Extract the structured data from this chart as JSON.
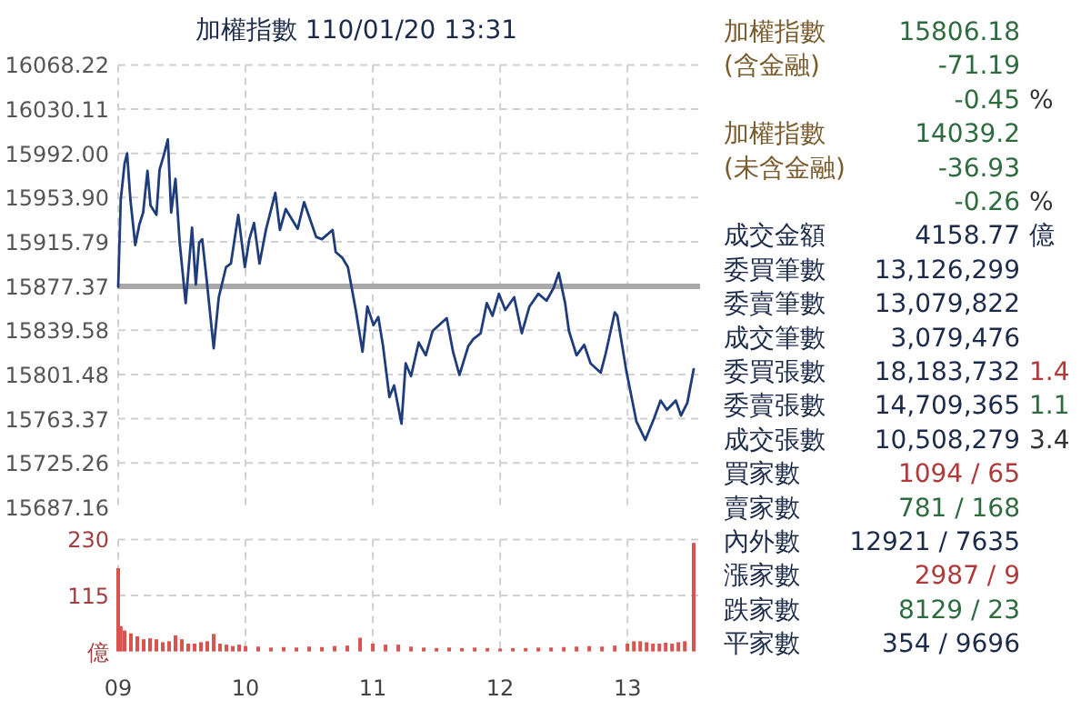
{
  "chart_data": [
    {
      "type": "line",
      "title": "加權指數 110/01/20 13:31",
      "xlim": [
        9,
        13.57
      ],
      "ylim": [
        15687.16,
        16068.22
      ],
      "yticks": [
        {
          "value": 15687.16,
          "label": "15687.16"
        },
        {
          "value": 15725.26,
          "label": "15725.26"
        },
        {
          "value": 15763.37,
          "label": "15763.37"
        },
        {
          "value": 15801.48,
          "label": "15801.48"
        },
        {
          "value": 15839.58,
          "label": "15839.58"
        },
        {
          "value": 15877.37,
          "label": "15877.37"
        },
        {
          "value": 15915.79,
          "label": "15915.79"
        },
        {
          "value": 15953.9,
          "label": "15953.90"
        },
        {
          "value": 15992,
          "label": "15992.00"
        },
        {
          "value": 16030.11,
          "label": "16030.11"
        },
        {
          "value": 16068.22,
          "label": "16068.22"
        }
      ],
      "xticks": [
        9,
        10,
        11,
        12,
        13
      ],
      "tick_labels": "y",
      "grid": true,
      "line_style": "solid",
      "ref_lines": [
        {
          "axis": "y",
          "value": 15877.37,
          "color": "#a9a9a9"
        }
      ],
      "series": [
        {
          "color": "#1f3d7a",
          "x": [
            9.0,
            9.02,
            9.05,
            9.07,
            9.096,
            9.134,
            9.167,
            9.196,
            9.23,
            9.254,
            9.3,
            9.325,
            9.36,
            9.39,
            9.416,
            9.45,
            9.483,
            9.53,
            9.58,
            9.61,
            9.636,
            9.66,
            9.694,
            9.75,
            9.79,
            9.847,
            9.885,
            9.943,
            9.995,
            10.03,
            10.067,
            10.11,
            10.16,
            10.234,
            10.27,
            10.316,
            10.41,
            10.46,
            10.555,
            10.6,
            10.684,
            10.708,
            10.76,
            10.804,
            10.866,
            10.919,
            10.957,
            11.005,
            11.043,
            11.08,
            11.13,
            11.167,
            11.225,
            11.258,
            11.3,
            11.36,
            11.416,
            11.47,
            11.58,
            11.63,
            11.68,
            11.75,
            11.79,
            11.847,
            11.895,
            11.94,
            11.99,
            12.04,
            12.11,
            12.17,
            12.23,
            12.3,
            12.364,
            12.42,
            12.46,
            12.51,
            12.54,
            12.6,
            12.66,
            12.71,
            12.79,
            12.83,
            12.9,
            12.92,
            12.99,
            13.07,
            13.14,
            13.21,
            13.26,
            13.31,
            13.38,
            13.42,
            13.47,
            13.52
          ],
          "values": [
            15877,
            15952,
            15983,
            15992,
            15952,
            15913,
            15931,
            15941,
            15977,
            15947,
            15939,
            15978,
            15991,
            16004,
            15941,
            15970,
            15915,
            15863,
            15928,
            15879,
            15915,
            15918,
            15884,
            15824,
            15868,
            15894,
            15897,
            15939,
            15894,
            15918,
            15932,
            15897,
            15926,
            15958,
            15926,
            15944,
            15927,
            15950,
            15920,
            15918,
            15926,
            15907,
            15902,
            15894,
            15857,
            15821,
            15860,
            15844,
            15851,
            15826,
            15782,
            15792,
            15759,
            15811,
            15800,
            15829,
            15818,
            15839,
            15850,
            15821,
            15801,
            15826,
            15832,
            15837,
            15863,
            15852,
            15871,
            15857,
            15868,
            15837,
            15860,
            15871,
            15865,
            15876,
            15889,
            15863,
            15839,
            15818,
            15827,
            15811,
            15803,
            15820,
            15855,
            15852,
            15805,
            15761,
            15745,
            15764,
            15779,
            15771,
            15779,
            15766,
            15777,
            15806
          ]
        }
      ]
    },
    {
      "type": "bar",
      "xlim": [
        9,
        13.57
      ],
      "ylim": [
        0,
        230
      ],
      "yticks": [
        {
          "value": 0,
          "label": "億"
        },
        115,
        230
      ],
      "xticks": [
        {
          "value": 9,
          "label": "09"
        },
        {
          "value": 10,
          "label": "10"
        },
        {
          "value": 11,
          "label": "11"
        },
        {
          "value": 12,
          "label": "12"
        },
        {
          "value": 13,
          "label": "13"
        }
      ],
      "grid": true,
      "series": [
        {
          "color": "#d9534f",
          "x": [
            9.0,
            9.02,
            9.05,
            9.1,
            9.15,
            9.2,
            9.25,
            9.3,
            9.35,
            9.4,
            9.45,
            9.5,
            9.55,
            9.6,
            9.65,
            9.7,
            9.75,
            9.8,
            9.85,
            9.9,
            9.95,
            10.0,
            10.1,
            10.2,
            10.3,
            10.4,
            10.5,
            10.6,
            10.7,
            10.8,
            10.9,
            11.0,
            11.1,
            11.2,
            11.3,
            11.4,
            11.5,
            11.6,
            11.7,
            11.8,
            11.9,
            12.0,
            12.1,
            12.2,
            12.3,
            12.4,
            12.5,
            12.6,
            12.7,
            12.8,
            12.9,
            13.0,
            13.05,
            13.1,
            13.15,
            13.2,
            13.25,
            13.3,
            13.35,
            13.4,
            13.45,
            13.52
          ],
          "values": [
            171,
            52,
            43,
            37,
            31,
            25,
            27,
            25,
            19,
            21,
            33,
            25,
            16,
            16,
            19,
            21,
            36,
            16,
            14,
            11,
            14,
            11,
            10,
            8,
            9,
            8,
            10,
            9,
            11,
            12,
            28,
            16,
            14,
            14,
            10,
            8,
            7,
            8,
            7,
            8,
            7,
            6,
            7,
            7,
            8,
            8,
            9,
            10,
            11,
            10,
            12,
            16,
            21,
            21,
            19,
            16,
            16,
            18,
            16,
            19,
            21,
            223
          ]
        }
      ]
    },
    {
      "type": "other",
      "categories": [
        "加權指數",
        "(含金融)",
        null,
        "加權指數",
        "(未含金融)",
        null,
        "成交金額",
        "委買筆數",
        "委賣筆數",
        "成交筆數",
        "委買張數",
        "委賣張數",
        "成交張數",
        "買家數",
        "賣家數",
        "內外數",
        "漲家數",
        "跌家數",
        "平家數"
      ],
      "value_labels": [
        [
          "15806.18",
          null
        ],
        [
          "-71.19",
          null
        ],
        [
          "-0.45",
          "%"
        ],
        [
          "14039.2",
          null
        ],
        [
          "-36.93",
          null
        ],
        [
          "-0.26",
          "%"
        ],
        [
          "4158.77",
          "億"
        ],
        [
          "13,126,299",
          null
        ],
        [
          "13,079,822",
          null
        ],
        [
          "3,079,476",
          null
        ],
        [
          "18,183,732",
          "1.4"
        ],
        [
          "14,709,365",
          "1.1"
        ],
        [
          "10,508,279",
          "3.4"
        ],
        [
          "1094 / 65",
          null
        ],
        [
          "781 / 168",
          null
        ],
        [
          "12921 / 7635",
          null
        ],
        [
          "2987 / 9",
          null
        ],
        [
          "8129 / 23",
          null
        ],
        [
          "354 / 9696",
          null
        ]
      ],
      "colors": [
        [
          "#7a5c2e",
          "#2e6b3f",
          null
        ],
        [
          "#7a5c2e",
          "#2e6b3f",
          null
        ],
        [
          null,
          "#2e6b3f",
          "#333333"
        ],
        [
          "#7a5c2e",
          "#2e6b3f",
          null
        ],
        [
          "#7a5c2e",
          "#2e6b3f",
          null
        ],
        [
          null,
          "#2e6b3f",
          "#333333"
        ],
        [
          "#1c2b4a",
          "#1c2b4a",
          "#1c2b4a"
        ],
        [
          "#1c2b4a",
          "#1c2b4a",
          null
        ],
        [
          "#1c2b4a",
          "#1c2b4a",
          null
        ],
        [
          "#1c2b4a",
          "#1c2b4a",
          null
        ],
        [
          "#1c2b4a",
          "#1c2b4a",
          "#b03a3a"
        ],
        [
          "#1c2b4a",
          "#1c2b4a",
          "#2e6b3f"
        ],
        [
          "#1c2b4a",
          "#1c2b4a",
          "#333333"
        ],
        [
          "#1c2b4a",
          "#b03a3a",
          null
        ],
        [
          "#1c2b4a",
          "#2e6b3f",
          null
        ],
        [
          "#1c2b4a",
          "#1c2b4a",
          null
        ],
        [
          "#1c2b4a",
          "#b03a3a",
          null
        ],
        [
          "#1c2b4a",
          "#2e6b3f",
          null
        ],
        [
          "#1c2b4a",
          "#1c2b4a",
          null
        ]
      ]
    }
  ]
}
